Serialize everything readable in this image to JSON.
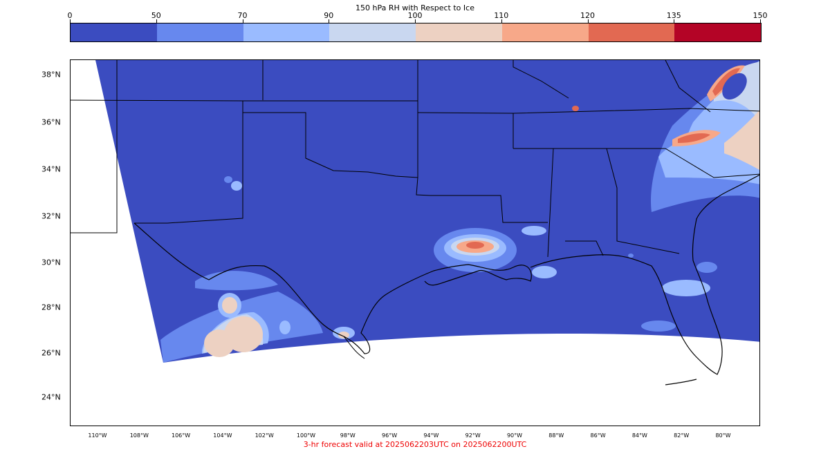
{
  "colorbar": {
    "title": "150 hPa RH with Respect to Ice",
    "ticks": [
      "0",
      "50",
      "70",
      "90",
      "100",
      "110",
      "120",
      "135",
      "150"
    ],
    "colors": [
      "#3b4cc0",
      "#6788ee",
      "#9abbff",
      "#c9d7f0",
      "#edd1c2",
      "#f7a889",
      "#e26952",
      "#b40426"
    ]
  },
  "map": {
    "lat_labels": [
      "38°N",
      "36°N",
      "34°N",
      "32°N",
      "30°N",
      "28°N",
      "26°N",
      "24°N"
    ],
    "lon_labels": [
      "110°W",
      "108°W",
      "106°W",
      "104°W",
      "102°W",
      "100°W",
      "98°W",
      "96°W",
      "94°W",
      "92°W",
      "90°W",
      "88°W",
      "86°W",
      "84°W",
      "82°W",
      "80°W"
    ],
    "background_field_color": "#3b4cc0",
    "boundary_color": "#000000"
  },
  "caption": {
    "text": "3-hr forecast valid at 2025062203UTC on 2025062200UTC",
    "color": "#ee0000"
  }
}
